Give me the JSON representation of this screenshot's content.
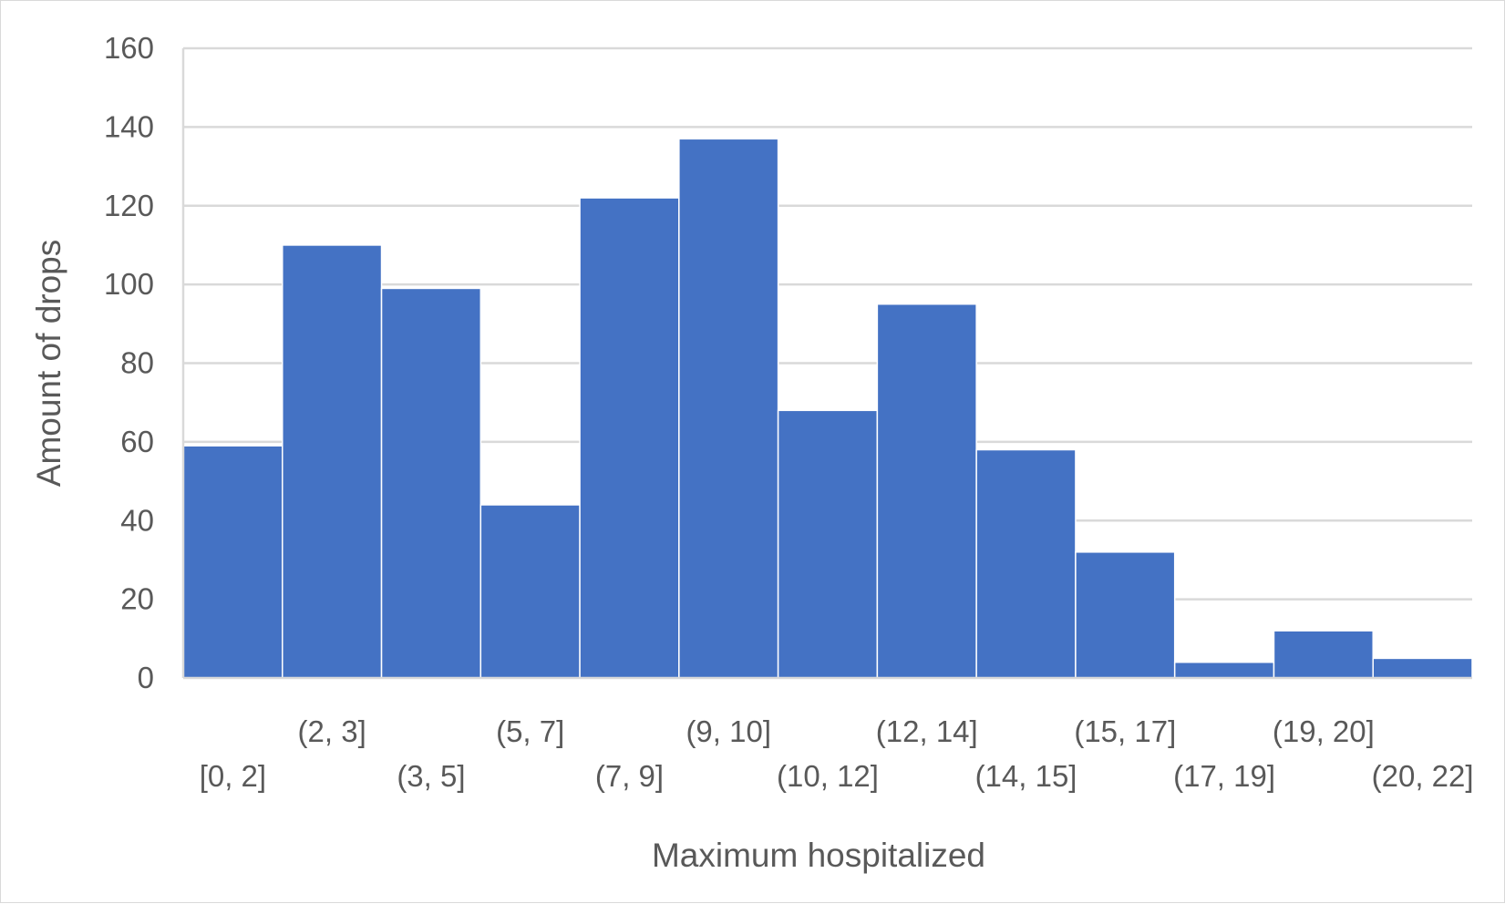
{
  "chart_data": {
    "type": "bar",
    "title": "",
    "xlabel": "Maximum hospitalized",
    "ylabel": "Amount of drops",
    "categories": [
      "[0, 2]",
      "(2, 3]",
      "(3, 5]",
      "(5, 7]",
      "(7, 9]",
      "(9, 10]",
      "(10, 12]",
      "(12, 14]",
      "(14, 15]",
      "(15, 17]",
      "(17, 19]",
      "(19, 20]",
      "(20, 22]"
    ],
    "values": [
      59,
      110,
      99,
      44,
      122,
      137,
      68,
      95,
      58,
      32,
      4,
      12,
      5
    ],
    "ylim": [
      0,
      160
    ],
    "yticks": [
      0,
      20,
      40,
      60,
      80,
      100,
      120,
      140,
      160
    ],
    "grid": true,
    "legend": "none",
    "bar_color": "#4472C4",
    "gridline_color": "#d9d9d9",
    "text_color": "#595959"
  }
}
